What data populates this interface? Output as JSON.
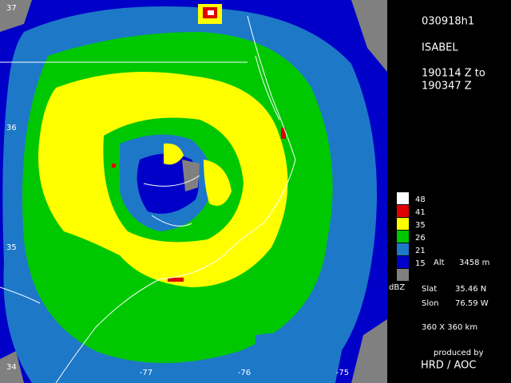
{
  "header": {
    "id": "030918h1",
    "storm": "ISABEL",
    "time_from": "190114 Z  to",
    "time_to": "190347 Z"
  },
  "legend": {
    "levels": [
      {
        "label": "48",
        "color": "#ffffff"
      },
      {
        "label": "41",
        "color": "#e00000"
      },
      {
        "label": "35",
        "color": "#ffff00"
      },
      {
        "label": "26",
        "color": "#00c800"
      },
      {
        "label": "21",
        "color": "#1e78c8"
      },
      {
        "label": "15",
        "color": "#0000c8"
      },
      {
        "color": "#808080"
      }
    ],
    "unit": "dBZ",
    "alt_label": "Alt",
    "alt_value": "3458 m"
  },
  "location": {
    "slat_label": "Slat",
    "slat": "35.46 N",
    "slon_label": "Slon",
    "slon": "76.59 W"
  },
  "domain_size": "360 X 360 km",
  "credit": {
    "line1": "produced by",
    "line2": "HRD / AOC"
  },
  "map": {
    "lat_labels": [
      "37",
      "36",
      "35",
      "34"
    ],
    "lon_labels": [
      "-77",
      "-76",
      "-75"
    ]
  }
}
